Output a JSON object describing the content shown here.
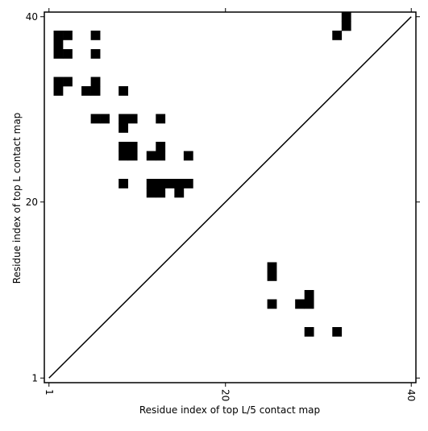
{
  "chart_data": {
    "type": "heatmap",
    "xlabel": "Residue index of top L/5 contact map",
    "ylabel": "Residue index of top L contact map",
    "color": "#000000",
    "x": [
      2,
      3,
      6,
      32,
      2,
      2,
      3,
      6,
      2,
      3,
      6,
      2,
      5,
      6,
      9,
      6,
      7,
      9,
      10,
      13,
      9,
      9,
      10,
      13,
      9,
      10,
      12,
      13,
      16,
      9,
      12,
      13,
      14,
      15,
      16,
      12,
      13,
      15,
      33,
      33,
      25,
      25,
      29,
      25,
      28,
      29,
      29,
      32
    ],
    "y": [
      38,
      38,
      38,
      38,
      37,
      36,
      36,
      36,
      33,
      33,
      33,
      32,
      32,
      32,
      32,
      29,
      29,
      29,
      29,
      29,
      28,
      26,
      26,
      26,
      25,
      25,
      25,
      25,
      25,
      22,
      22,
      22,
      22,
      22,
      22,
      21,
      21,
      21,
      40,
      39,
      13,
      12,
      10,
      9,
      9,
      9,
      6,
      6
    ],
    "xlim": [
      0.5,
      40.5
    ],
    "ylim": [
      0.5,
      40.5
    ],
    "xticks": [
      1,
      20,
      40
    ],
    "yticks": [
      1,
      20,
      40
    ]
  }
}
